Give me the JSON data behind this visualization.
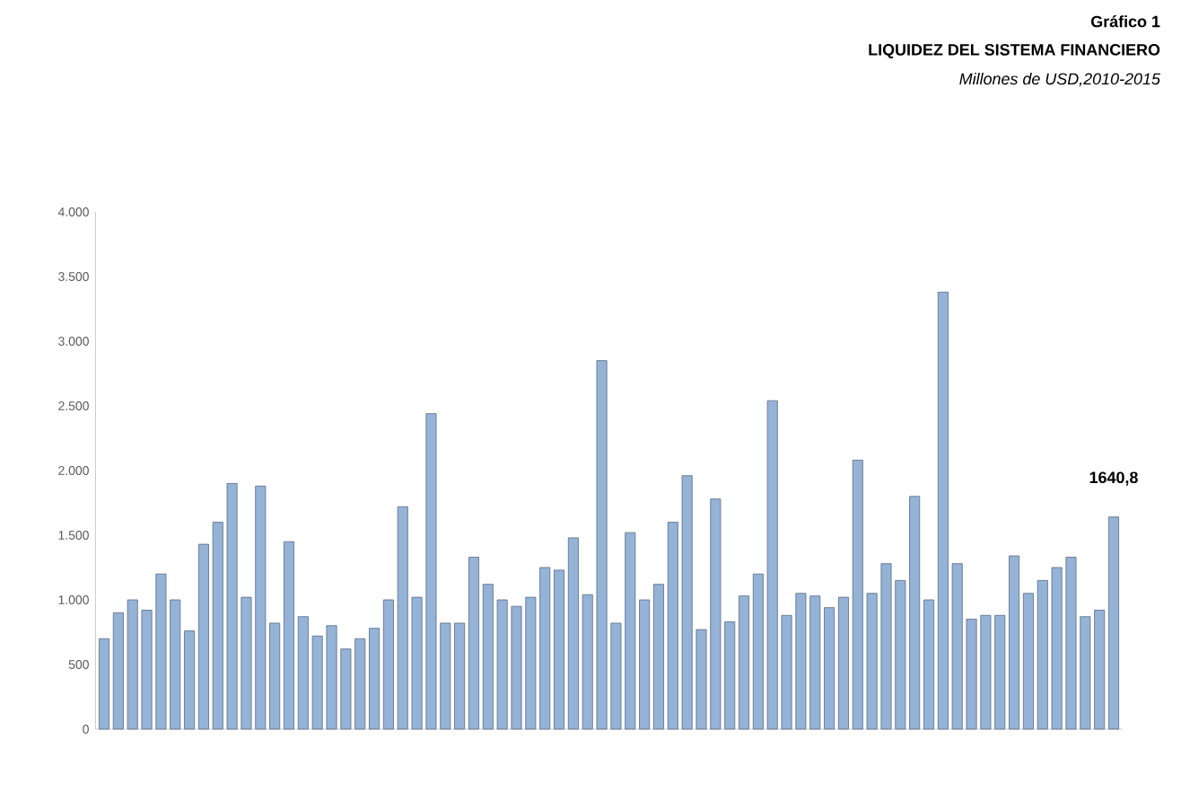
{
  "chart_data": {
    "type": "bar",
    "title": "LIQUIDEZ DEL SISTEMA FINANCIERO",
    "subtitle": "Millones de USD,2010-2015",
    "annotations": [
      "Gráfico 1"
    ],
    "categories": [
      null,
      null,
      null,
      null,
      null,
      null,
      null,
      null,
      null,
      null,
      null,
      null,
      null,
      null,
      null,
      null,
      null,
      null,
      null,
      null,
      null,
      null,
      null,
      null,
      null,
      null,
      null,
      null,
      null,
      null,
      null,
      null,
      null,
      null,
      null,
      null,
      null,
      null,
      null,
      null,
      null,
      null,
      null,
      null,
      null,
      null,
      null,
      null,
      null,
      null,
      null,
      null,
      null,
      null,
      null,
      null,
      null,
      null,
      null,
      null,
      null,
      null,
      null,
      null,
      null,
      null,
      null,
      null,
      null,
      null,
      null,
      null
    ],
    "values": [
      700,
      900,
      1000,
      920,
      1200,
      1000,
      760,
      1430,
      1600,
      1900,
      1020,
      1880,
      820,
      1450,
      870,
      720,
      800,
      620,
      700,
      780,
      1000,
      1720,
      1020,
      2440,
      820,
      820,
      1330,
      1120,
      1000,
      950,
      1020,
      1250,
      1230,
      1480,
      1040,
      2850,
      820,
      1520,
      1000,
      1120,
      1600,
      1960,
      770,
      1780,
      830,
      1030,
      1200,
      2540,
      880,
      1050,
      1030,
      940,
      1020,
      2080,
      1050,
      1280,
      1150,
      1800,
      1000,
      3380,
      1280,
      850,
      880,
      880,
      1340,
      1050,
      1150,
      1250,
      1330,
      870,
      920,
      1640.8
    ],
    "value_labels": [
      null,
      null,
      null,
      null,
      null,
      null,
      null,
      null,
      null,
      null,
      null,
      null,
      null,
      null,
      null,
      null,
      null,
      null,
      null,
      null,
      null,
      null,
      null,
      null,
      null,
      null,
      null,
      null,
      null,
      null,
      null,
      null,
      null,
      null,
      null,
      null,
      null,
      null,
      null,
      null,
      null,
      null,
      null,
      null,
      null,
      null,
      null,
      null,
      null,
      null,
      null,
      null,
      null,
      null,
      null,
      null,
      null,
      null,
      null,
      null,
      null,
      null,
      null,
      null,
      null,
      null,
      null,
      null,
      null,
      null,
      null,
      "1640,8"
    ],
    "color": "#95b3d7",
    "ylim": [
      0,
      4000
    ],
    "yticks": [
      {
        "value": 0,
        "label": "0"
      },
      {
        "value": 500,
        "label": "500"
      },
      {
        "value": 1000,
        "label": "1.000"
      },
      {
        "value": 1500,
        "label": "1.500"
      },
      {
        "value": 2000,
        "label": "2.000"
      },
      {
        "value": 2500,
        "label": "2.500"
      },
      {
        "value": 3000,
        "label": "3.000"
      },
      {
        "value": 3500,
        "label": "3.500"
      },
      {
        "value": 4000,
        "label": "4.000"
      }
    ],
    "grid": false
  }
}
